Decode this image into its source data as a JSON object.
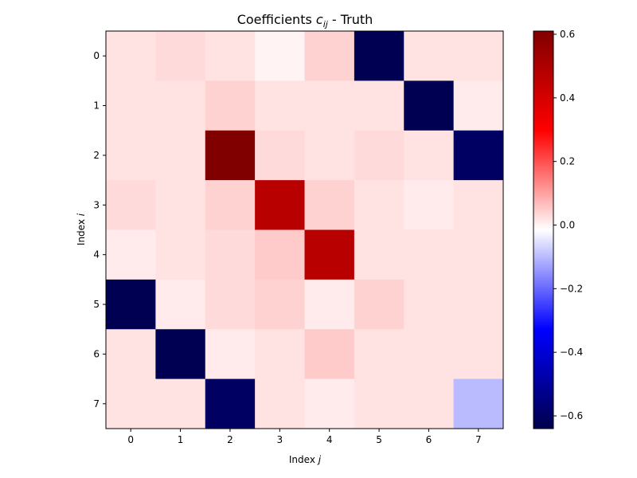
{
  "chart_data": {
    "type": "heatmap",
    "title_prefix": "Coefficients ",
    "title_var": "c",
    "title_sub": "ij",
    "title_suffix": " - Truth",
    "xlabel_text": "Index ",
    "xlabel_var": "j",
    "ylabel_text": "Index ",
    "ylabel_var": "i",
    "x_categories": [
      "0",
      "1",
      "2",
      "3",
      "4",
      "5",
      "6",
      "7"
    ],
    "y_categories": [
      "0",
      "1",
      "2",
      "3",
      "4",
      "5",
      "6",
      "7"
    ],
    "colormap": "seismic",
    "vmin": -0.64,
    "vmax": 0.61,
    "colorbar_ticks": [
      0.6,
      0.4,
      0.2,
      0.0,
      -0.2,
      -0.4,
      -0.6
    ],
    "colorbar_tick_labels": [
      "0.6",
      "0.4",
      "0.2",
      "0.0",
      "−0.2",
      "−0.4",
      "−0.6"
    ],
    "values": [
      [
        0.02,
        0.03,
        0.02,
        0.0,
        0.04,
        -0.63,
        0.02,
        0.02
      ],
      [
        0.02,
        0.02,
        0.04,
        0.02,
        0.02,
        0.02,
        -0.63,
        0.01
      ],
      [
        0.02,
        0.02,
        0.61,
        0.03,
        0.02,
        0.03,
        0.02,
        -0.6
      ],
      [
        0.03,
        0.02,
        0.04,
        0.47,
        0.04,
        0.02,
        0.01,
        0.02
      ],
      [
        0.01,
        0.02,
        0.03,
        0.05,
        0.47,
        0.02,
        0.02,
        0.02
      ],
      [
        -0.63,
        0.01,
        0.03,
        0.04,
        0.01,
        0.04,
        0.02,
        0.02
      ],
      [
        0.02,
        -0.63,
        0.01,
        0.02,
        0.05,
        0.02,
        0.02,
        0.02
      ],
      [
        0.02,
        0.02,
        -0.6,
        0.02,
        0.01,
        0.02,
        0.02,
        -0.1
      ]
    ]
  }
}
